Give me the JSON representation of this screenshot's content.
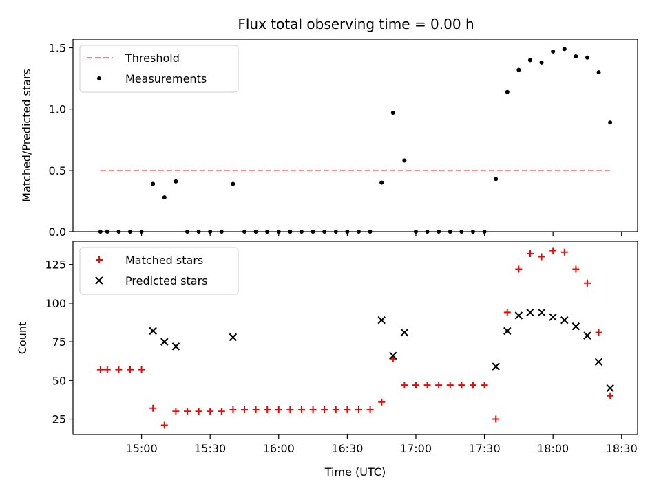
{
  "chart_data": [
    {
      "type": "scatter",
      "title": "Flux total observing time = 0.00 h",
      "xlabel": "",
      "ylabel": "Matched/Predicted stars",
      "xlim": [
        "14:30",
        "18:37"
      ],
      "ylim": [
        0,
        1.57
      ],
      "yticks": [
        0.0,
        0.5,
        1.0,
        1.5
      ],
      "ytick_labels": [
        "0.0",
        "0.5",
        "1.0",
        "1.5"
      ],
      "xticks": [
        "15:00",
        "15:30",
        "16:00",
        "16:30",
        "17:00",
        "17:30",
        "18:00",
        "18:30"
      ],
      "grid": false,
      "legend_position": "upper-left",
      "series": [
        {
          "name": "Threshold",
          "kind": "line",
          "style": "dashed",
          "color": "#ff8080",
          "x": [
            "14:42",
            "18:25"
          ],
          "y": [
            0.5,
            0.5
          ]
        },
        {
          "name": "Measurements",
          "kind": "scatter",
          "marker": "dot",
          "color": "#000000",
          "x": [
            "14:42",
            "14:45",
            "14:50",
            "14:55",
            "15:00",
            "15:05",
            "15:10",
            "15:15",
            "15:20",
            "15:25",
            "15:30",
            "15:35",
            "15:40",
            "15:45",
            "15:50",
            "15:55",
            "16:00",
            "16:05",
            "16:10",
            "16:15",
            "16:20",
            "16:25",
            "16:30",
            "16:35",
            "16:40",
            "16:45",
            "16:50",
            "16:55",
            "17:00",
            "17:05",
            "17:10",
            "17:15",
            "17:20",
            "17:25",
            "17:30",
            "17:35",
            "17:40",
            "17:45",
            "17:50",
            "17:55",
            "18:00",
            "18:05",
            "18:10",
            "18:15",
            "18:20",
            "18:25"
          ],
          "y": [
            0,
            0,
            0,
            0,
            0,
            0.39,
            0.28,
            0.41,
            0,
            0,
            0,
            0,
            0.39,
            0,
            0,
            0,
            0,
            0,
            0,
            0,
            0,
            0,
            0,
            0,
            0,
            0.4,
            0.97,
            0.58,
            0,
            0,
            0,
            0,
            0,
            0,
            0,
            0.43,
            1.14,
            1.32,
            1.4,
            1.38,
            1.47,
            1.49,
            1.43,
            1.42,
            1.3,
            0.89
          ]
        }
      ]
    },
    {
      "type": "scatter",
      "title": "",
      "xlabel": "Time (UTC)",
      "ylabel": "Count",
      "xlim": [
        "14:30",
        "18:37"
      ],
      "ylim": [
        15,
        140
      ],
      "yticks": [
        25,
        50,
        75,
        100,
        125
      ],
      "ytick_labels": [
        "25",
        "50",
        "75",
        "100",
        "125"
      ],
      "xticks": [
        "15:00",
        "15:30",
        "16:00",
        "16:30",
        "17:00",
        "17:30",
        "18:00",
        "18:30"
      ],
      "xtick_labels": [
        "15:00",
        "15:30",
        "16:00",
        "16:30",
        "17:00",
        "17:30",
        "18:00",
        "18:30"
      ],
      "grid": false,
      "legend_position": "upper-left",
      "series": [
        {
          "name": "Matched stars",
          "kind": "scatter",
          "marker": "plus",
          "color": "#ff0000",
          "x": [
            "14:42",
            "14:45",
            "14:50",
            "14:55",
            "15:00",
            "15:05",
            "15:10",
            "15:15",
            "15:20",
            "15:25",
            "15:30",
            "15:35",
            "15:40",
            "15:45",
            "15:50",
            "15:55",
            "16:00",
            "16:05",
            "16:10",
            "16:15",
            "16:20",
            "16:25",
            "16:30",
            "16:35",
            "16:40",
            "16:45",
            "16:50",
            "16:55",
            "17:00",
            "17:05",
            "17:10",
            "17:15",
            "17:20",
            "17:25",
            "17:30",
            "17:35",
            "17:40",
            "17:45",
            "17:50",
            "17:55",
            "18:00",
            "18:05",
            "18:10",
            "18:15",
            "18:20",
            "18:25"
          ],
          "y": [
            57,
            57,
            57,
            57,
            57,
            32,
            21,
            30,
            30,
            30,
            30,
            30,
            31,
            31,
            31,
            31,
            31,
            31,
            31,
            31,
            31,
            31,
            31,
            31,
            31,
            36,
            64,
            47,
            47,
            47,
            47,
            47,
            47,
            47,
            47,
            25,
            94,
            122,
            132,
            130,
            134,
            133,
            122,
            113,
            81,
            40
          ]
        },
        {
          "name": "Predicted stars",
          "kind": "scatter",
          "marker": "x",
          "color": "#000000",
          "x": [
            "15:05",
            "15:10",
            "15:15",
            "15:40",
            "16:45",
            "16:50",
            "16:55",
            "17:35",
            "17:40",
            "17:45",
            "17:50",
            "17:55",
            "18:00",
            "18:05",
            "18:10",
            "18:15",
            "18:20",
            "18:25"
          ],
          "y": [
            82,
            75,
            72,
            78,
            89,
            66,
            81,
            59,
            82,
            92,
            94,
            94,
            91,
            89,
            85,
            79,
            62,
            45
          ]
        }
      ]
    }
  ]
}
